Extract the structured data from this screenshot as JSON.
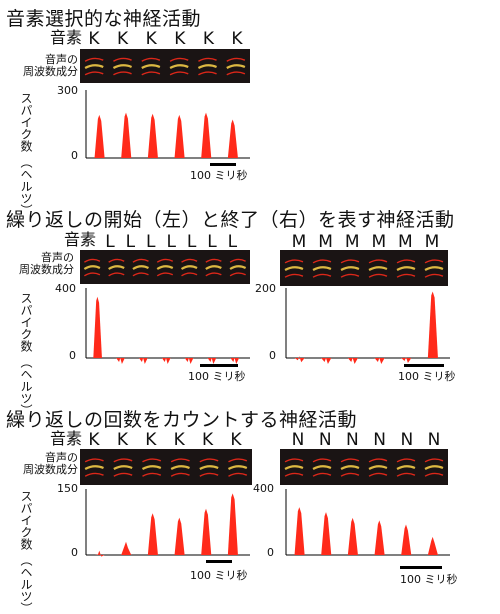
{
  "sections": [
    {
      "title": "音素選択的な神経活動",
      "syllable_row_label": "音素",
      "spectrogram_label": [
        "音声の",
        "周波数成分"
      ],
      "ylabel": [
        "スパイク数",
        "（ヘルツ）"
      ],
      "scalebar_label": "100 ミリ秒"
    },
    {
      "title": "繰り返しの開始（左）と終了（右）を表す神経活動",
      "syllable_row_label": "音素",
      "spectrogram_label": [
        "音声の",
        "周波数成分"
      ],
      "ylabel": [
        "スパイク数",
        "（ヘルツ）"
      ],
      "scalebar_label": "100 ミリ秒"
    },
    {
      "title": "繰り返しの回数をカウントする神経活動",
      "syllable_row_label": "音素",
      "spectrogram_label": [
        "音声の",
        "周波数成分"
      ],
      "ylabel": [
        "スパイク数",
        "（ヘルツ）"
      ],
      "scalebar_label": "100 ミリ秒"
    }
  ],
  "colors": {
    "spike": "#ff2a1a",
    "spectrogram_bg": "#1a1414",
    "spectrogram_hot": "#ffd54a",
    "axis": "#000000"
  },
  "chart_data": [
    {
      "type": "bar",
      "id": "k-selective",
      "syllables": [
        "K",
        "K",
        "K",
        "K",
        "K",
        "K"
      ],
      "ylim": [
        0,
        300
      ],
      "yticks": [
        0,
        300
      ],
      "values": [
        190,
        200,
        195,
        190,
        200,
        170
      ]
    },
    {
      "type": "bar",
      "id": "l-onset",
      "syllables": [
        "L",
        "L",
        "L",
        "L",
        "L",
        "L",
        "L"
      ],
      "ylim": [
        0,
        400
      ],
      "yticks": [
        0,
        400
      ],
      "values": [
        350,
        0,
        0,
        0,
        0,
        0,
        0
      ]
    },
    {
      "type": "bar",
      "id": "m-offset",
      "syllables": [
        "M",
        "M",
        "M",
        "M",
        "M",
        "M"
      ],
      "ylim": [
        0,
        200
      ],
      "yticks": [
        0,
        200
      ],
      "values": [
        5,
        0,
        0,
        0,
        3,
        190
      ]
    },
    {
      "type": "bar",
      "id": "k-count",
      "syllables": [
        "K",
        "K",
        "K",
        "K",
        "K",
        "K"
      ],
      "ylim": [
        0,
        150
      ],
      "yticks": [
        0,
        150
      ],
      "values": [
        10,
        30,
        95,
        85,
        105,
        140
      ]
    },
    {
      "type": "bar",
      "id": "n-count",
      "syllables": [
        "N",
        "N",
        "N",
        "N",
        "N",
        "N"
      ],
      "ylim": [
        0,
        400
      ],
      "yticks": [
        0,
        400
      ],
      "values": [
        290,
        260,
        225,
        210,
        185,
        110
      ]
    }
  ]
}
